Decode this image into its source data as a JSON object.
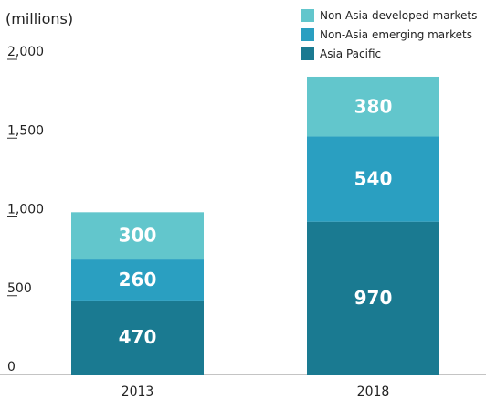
{
  "chart_data": {
    "type": "stacked_bar",
    "y_axis_label": "(millions)",
    "categories": [
      "2013",
      "2018"
    ],
    "series": [
      {
        "name": "Asia Pacific",
        "color": "#1a7a91",
        "values": [
          470,
          970
        ]
      },
      {
        "name": "Non-Asia emerging markets",
        "color": "#2a9fc1",
        "values": [
          260,
          540
        ]
      },
      {
        "name": "Non-Asia developed markets",
        "color": "#62c6cc",
        "values": [
          300,
          380
        ]
      }
    ],
    "ylim": [
      0,
      2000
    ],
    "yticks": [
      0,
      500,
      {
        "value": 1000,
        "label": "1,000"
      },
      {
        "value": 1500,
        "label": "1,500"
      },
      {
        "value": 2000,
        "label": "2,000"
      }
    ],
    "legend": "top-right"
  }
}
